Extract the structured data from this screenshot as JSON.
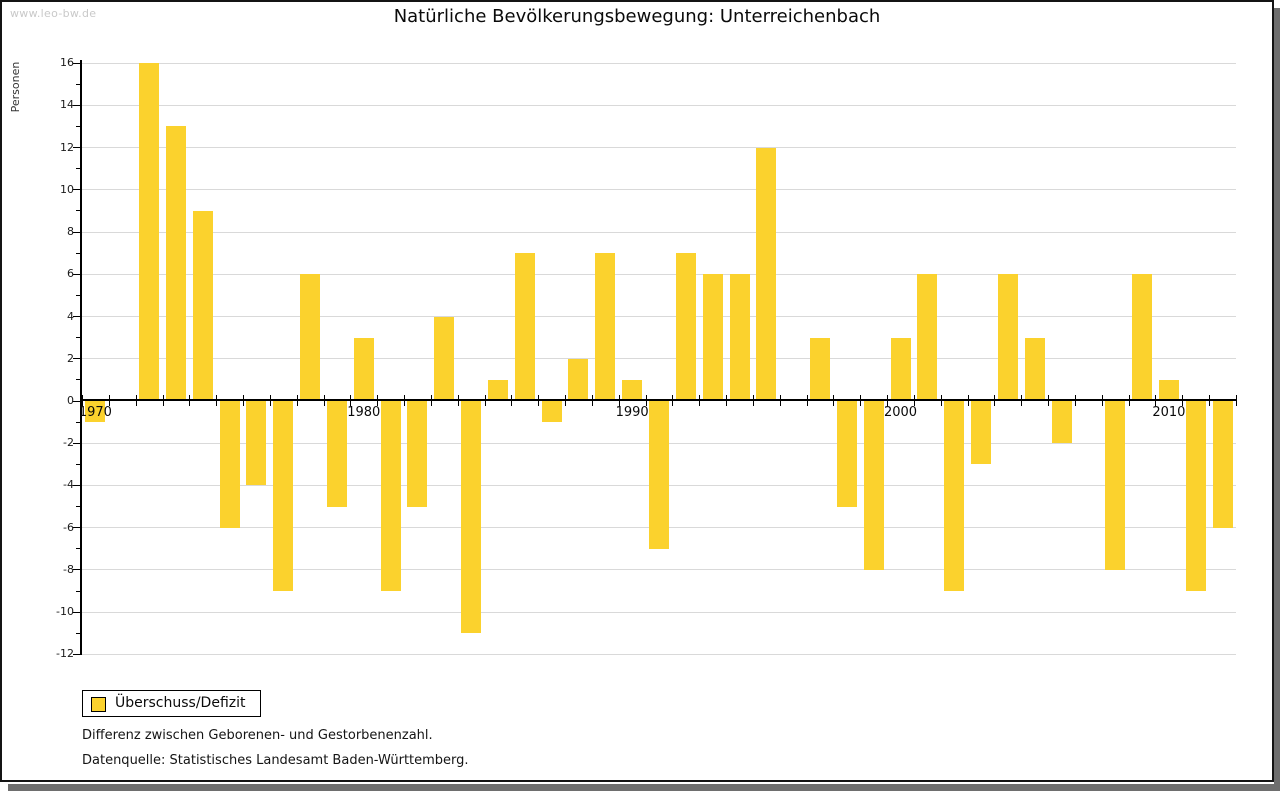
{
  "window": {
    "watermark": "www.leo-bw.de"
  },
  "header": {
    "title": "Natürliche Bevölkerungsbewegung: Unterreichenbach"
  },
  "legend": {
    "label": "Überschuss/Defizit"
  },
  "notes": [
    "Differenz zwischen Geborenen- und Gestorbenenzahl.",
    "Datenquelle: Statistisches Landesamt Baden-Württemberg."
  ],
  "colors": {
    "bar": "#fbd22d",
    "grid": "#d9d9d9",
    "axis": "#000000",
    "frame_shadow": "#6e6e6e",
    "watermark": "#c9c9c9"
  },
  "chart_data": {
    "type": "bar",
    "title": "Natürliche Bevölkerungsbewegung: Unterreichenbach",
    "xlabel": "",
    "ylabel": "Personen",
    "series_name": "Überschuss/Defizit",
    "categories": [
      1970,
      1971,
      1972,
      1973,
      1974,
      1975,
      1976,
      1977,
      1978,
      1979,
      1980,
      1981,
      1982,
      1983,
      1984,
      1985,
      1986,
      1987,
      1988,
      1989,
      1990,
      1991,
      1992,
      1993,
      1994,
      1995,
      1996,
      1997,
      1998,
      1999,
      2000,
      2001,
      2002,
      2003,
      2004,
      2005,
      2006,
      2007,
      2008,
      2009,
      2010,
      2011,
      2012
    ],
    "values": [
      -1,
      0,
      16,
      13,
      9,
      -6,
      -4,
      -9,
      6,
      -5,
      3,
      -9,
      -5,
      4,
      -11,
      1,
      7,
      -1,
      2,
      7,
      1,
      -7,
      7,
      6,
      6,
      12,
      0,
      3,
      -5,
      -8,
      3,
      6,
      -9,
      -3,
      6,
      3,
      -2,
      0,
      -8,
      6,
      1,
      -9,
      -6
    ],
    "ylim": [
      -12,
      16
    ],
    "ytick_step": 2,
    "yticks_labeled": [
      16,
      14,
      12,
      10,
      8,
      6,
      4,
      2,
      0,
      -2,
      -4,
      -6,
      -8,
      -10,
      -12
    ],
    "xticks_labeled": [
      1970,
      1980,
      1990,
      2000,
      2010
    ],
    "grid": "horizontal-even-values",
    "legend_position": "bottom-left"
  }
}
